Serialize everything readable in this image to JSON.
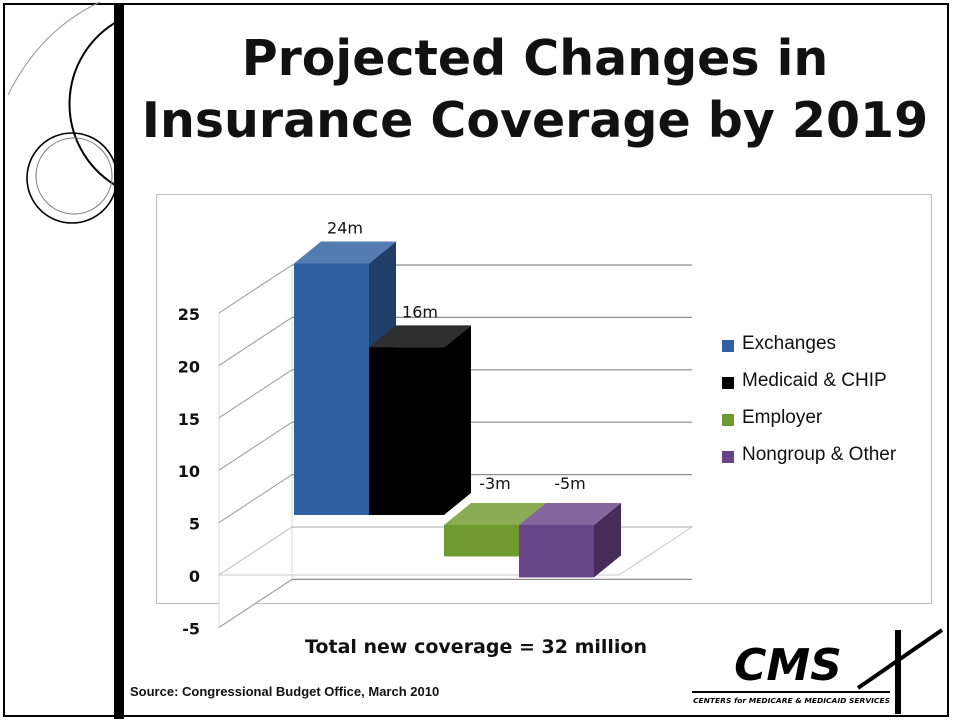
{
  "slide": {
    "title_line1": "Projected Changes in",
    "title_line2": "Insurance Coverage by 2019",
    "total_text": "Total new coverage = 32 million",
    "source_text": "Source:  Congressional Budget Office, March 2010",
    "logo": {
      "wordmark": "CMS",
      "tagline": "CENTERS for MEDICARE & MEDICAID SERVICES"
    }
  },
  "chart_data": {
    "type": "bar",
    "title": "",
    "xlabel": "",
    "ylabel": "",
    "ylim": [
      -5,
      25
    ],
    "yticks": [
      -5,
      0,
      5,
      10,
      15,
      20,
      25
    ],
    "grid": true,
    "legend_position": "right",
    "three_d": true,
    "series": [
      {
        "name": "Exchanges",
        "value": 24,
        "label": "24m",
        "color": "#2f5fa0"
      },
      {
        "name": "Medicaid & CHIP",
        "value": 16,
        "label": "16m",
        "color": "#000000"
      },
      {
        "name": "Employer",
        "value": -3,
        "label": "-3m",
        "color": "#6f9a2f"
      },
      {
        "name": "Nongroup & Other",
        "value": -5,
        "label": "-5m",
        "color": "#6a4489"
      }
    ]
  }
}
